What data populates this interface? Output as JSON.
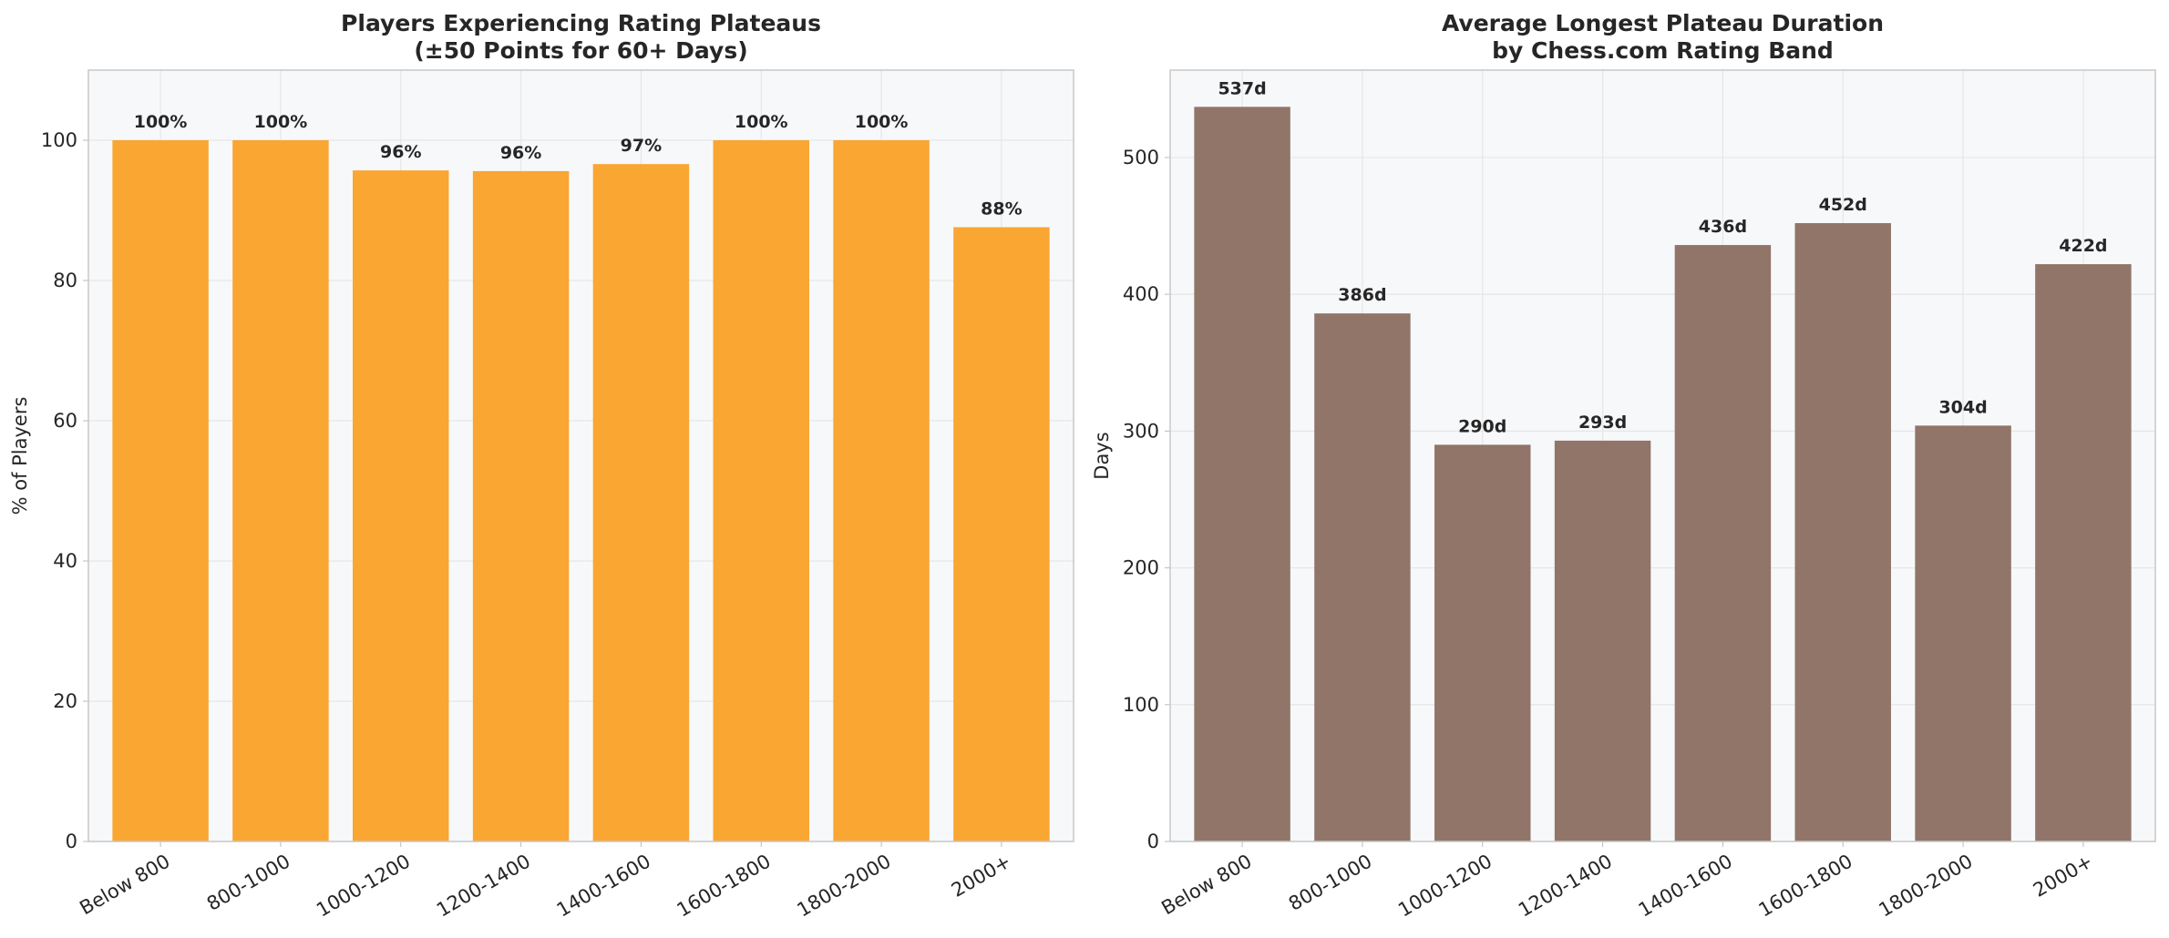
{
  "chart_data": [
    {
      "type": "bar",
      "title": [
        "Players Experiencing Rating Plateaus",
        "(±50 Points for 60+ Days)"
      ],
      "ylabel": "% of Players",
      "categories": [
        "Below 800",
        "800-1000",
        "1000-1200",
        "1200-1400",
        "1400-1600",
        "1600-1800",
        "1800-2000",
        "2000+"
      ],
      "values": [
        100,
        100,
        95.7,
        95.6,
        96.6,
        100,
        100,
        87.6
      ],
      "value_labels": [
        "100%",
        "100%",
        "96%",
        "96%",
        "97%",
        "100%",
        "100%",
        "88%"
      ],
      "color": "#f9a633",
      "ylim": [
        0,
        110
      ],
      "yticks": [
        0,
        20,
        40,
        60,
        80,
        100
      ],
      "grid": true
    },
    {
      "type": "bar",
      "title": [
        "Average Longest Plateau Duration",
        "by Chess.com Rating Band"
      ],
      "ylabel": "Days",
      "categories": [
        "Below 800",
        "800-1000",
        "1000-1200",
        "1200-1400",
        "1400-1600",
        "1600-1800",
        "1800-2000",
        "2000+"
      ],
      "values": [
        537,
        386,
        290,
        293,
        436,
        452,
        304,
        422
      ],
      "value_labels": [
        "537d",
        "386d",
        "290d",
        "293d",
        "436d",
        "452d",
        "304d",
        "422d"
      ],
      "color": "#917569",
      "ylim": [
        0,
        563.85
      ],
      "yticks": [
        0,
        100,
        200,
        300,
        400,
        500
      ],
      "grid": true
    }
  ]
}
